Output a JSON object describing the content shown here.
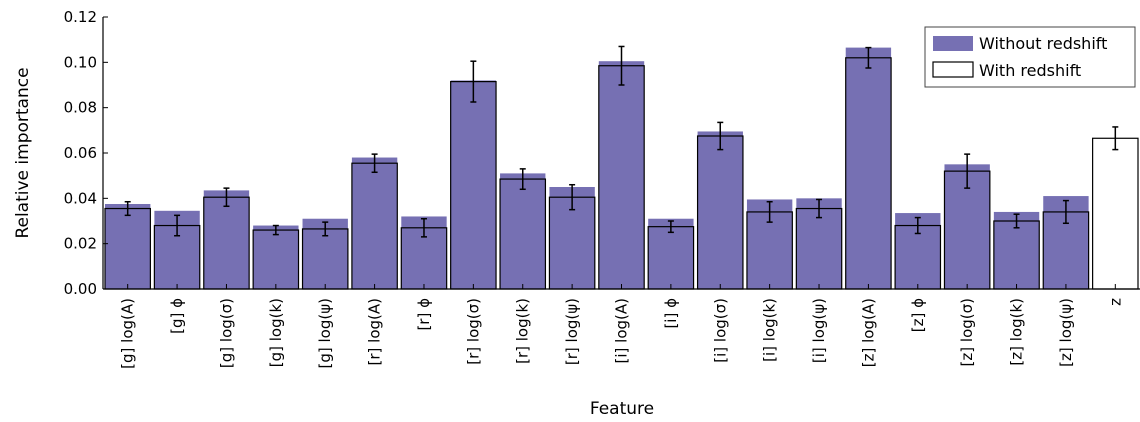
{
  "chart_data": {
    "type": "bar",
    "xlabel": "Feature",
    "ylabel": "Relative importance",
    "ylim": [
      0,
      0.12
    ],
    "yticks": [
      "0.00",
      "0.02",
      "0.04",
      "0.06",
      "0.08",
      "0.10",
      "0.12"
    ],
    "grid": false,
    "legend_position": "top-right",
    "categories": [
      "[g] log(A)",
      "[g] ϕ",
      "[g] log(σ)",
      "[g] log(k)",
      "[g] log(ψ)",
      "[r] log(A)",
      "[r] ϕ",
      "[r] log(σ)",
      "[r] log(k)",
      "[r] log(ψ)",
      "[i] log(A)",
      "[i] ϕ",
      "[i] log(σ)",
      "[i] log(k)",
      "[i] log(ψ)",
      "[z] log(A)",
      "[z] ϕ",
      "[z] log(σ)",
      "[z] log(k)",
      "[z] log(ψ)",
      "z"
    ],
    "series": [
      {
        "name": "Without redshift",
        "color": "#7670b3",
        "values": [
          0.0375,
          0.0345,
          0.0435,
          0.028,
          0.031,
          0.058,
          0.032,
          0.092,
          0.051,
          0.045,
          0.1005,
          0.031,
          0.0695,
          0.0395,
          0.04,
          0.1065,
          0.0335,
          0.055,
          0.034,
          0.041,
          null
        ]
      },
      {
        "name": "With redshift",
        "color": "#ffffff",
        "values": [
          0.0355,
          0.028,
          0.0405,
          0.026,
          0.0265,
          0.0555,
          0.027,
          0.0915,
          0.0485,
          0.0405,
          0.0985,
          0.0275,
          0.0675,
          0.034,
          0.0355,
          0.102,
          0.028,
          0.052,
          0.03,
          0.034,
          0.0665
        ],
        "errors": [
          0.003,
          0.0045,
          0.004,
          0.002,
          0.003,
          0.004,
          0.004,
          0.009,
          0.0045,
          0.0055,
          0.0085,
          0.0025,
          0.006,
          0.0045,
          0.004,
          0.0045,
          0.0035,
          0.0075,
          0.003,
          0.005,
          0.005
        ]
      }
    ]
  }
}
